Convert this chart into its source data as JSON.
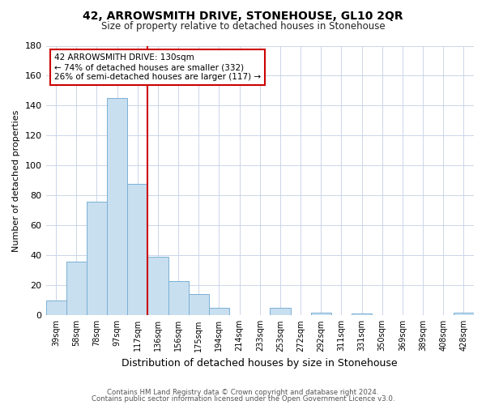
{
  "title": "42, ARROWSMITH DRIVE, STONEHOUSE, GL10 2QR",
  "subtitle": "Size of property relative to detached houses in Stonehouse",
  "xlabel": "Distribution of detached houses by size in Stonehouse",
  "ylabel": "Number of detached properties",
  "bar_labels": [
    "39sqm",
    "58sqm",
    "78sqm",
    "97sqm",
    "117sqm",
    "136sqm",
    "156sqm",
    "175sqm",
    "194sqm",
    "214sqm",
    "233sqm",
    "253sqm",
    "272sqm",
    "292sqm",
    "311sqm",
    "331sqm",
    "350sqm",
    "369sqm",
    "389sqm",
    "408sqm",
    "428sqm"
  ],
  "bar_values": [
    10,
    36,
    76,
    145,
    88,
    39,
    23,
    14,
    5,
    0,
    0,
    5,
    0,
    2,
    0,
    1,
    0,
    0,
    0,
    0,
    2
  ],
  "bar_color": "#c8dff0",
  "bar_edge_color": "#7ab0d4",
  "vline_x": 4.5,
  "vline_color": "#cc0000",
  "ylim": [
    0,
    180
  ],
  "yticks": [
    0,
    20,
    40,
    60,
    80,
    100,
    120,
    140,
    160,
    180
  ],
  "annotation_title": "42 ARROWSMITH DRIVE: 130sqm",
  "annotation_line1": "← 74% of detached houses are smaller (332)",
  "annotation_line2": "26% of semi-detached houses are larger (117) →",
  "annotation_box_color": "#ffffff",
  "annotation_box_edge": "#cc0000",
  "footer1": "Contains HM Land Registry data © Crown copyright and database right 2024.",
  "footer2": "Contains public sector information licensed under the Open Government Licence v3.0.",
  "background_color": "#ffffff",
  "grid_color": "#ccd5e8"
}
